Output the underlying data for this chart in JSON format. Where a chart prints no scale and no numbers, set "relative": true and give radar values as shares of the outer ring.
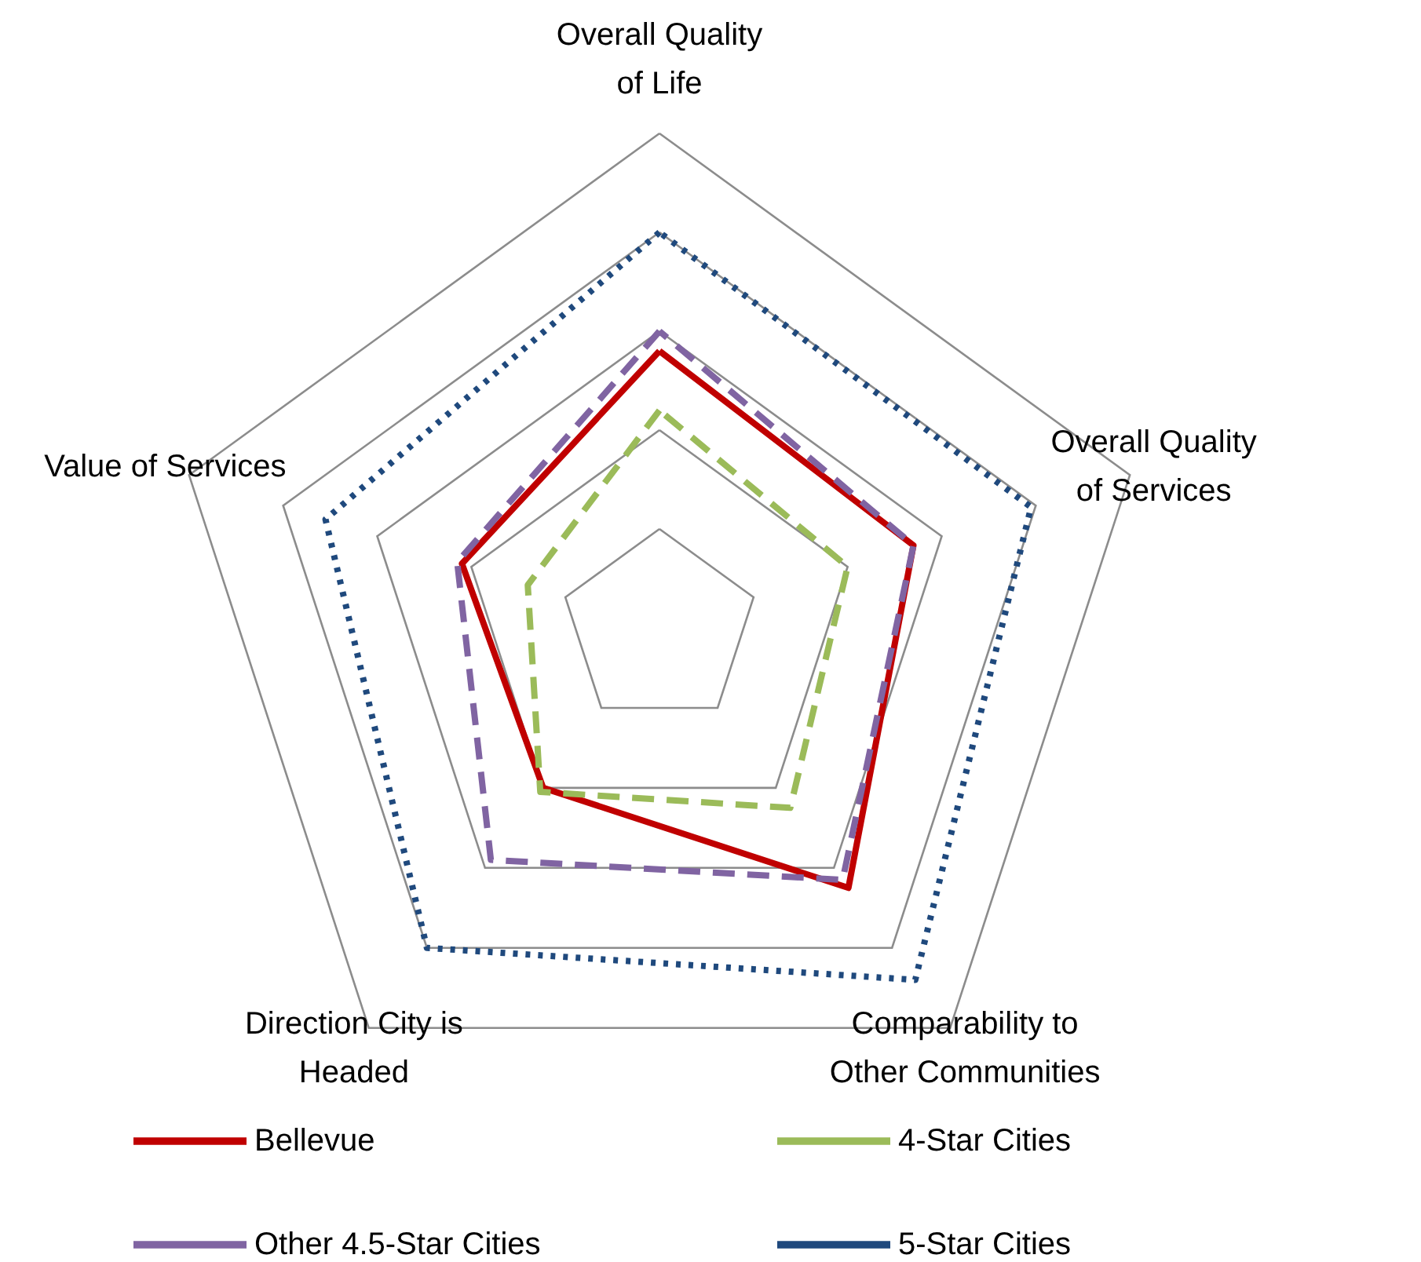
{
  "chart_data": {
    "type": "radar",
    "relative": true,
    "grid": true,
    "legend": "bottom",
    "marker": "none",
    "categories": [
      "Overall Quality of Life",
      "Overall Quality of Services",
      "Comparability to Other Communities",
      "Direction City is Headed",
      "Value of Services"
    ],
    "series": [
      {
        "name": "Bellevue",
        "color": "#c00000",
        "line_style": "solid",
        "values": [
          0.56,
          0.54,
          0.65,
          0.4,
          0.42
        ]
      },
      {
        "name": "4-Star Cities",
        "color": "#9bbb59",
        "line_style": "dashed",
        "values": [
          0.44,
          0.4,
          0.45,
          0.41,
          0.28
        ]
      },
      {
        "name": "Other 4.5-Star Cities",
        "color": "#8064a2",
        "line_style": "dashed",
        "values": [
          0.6,
          0.54,
          0.63,
          0.58,
          0.43
        ]
      },
      {
        "name": "5-Star Cities",
        "color": "#1f497d",
        "line_style": "dotted",
        "values": [
          0.8,
          0.79,
          0.88,
          0.8,
          0.71
        ]
      }
    ]
  }
}
